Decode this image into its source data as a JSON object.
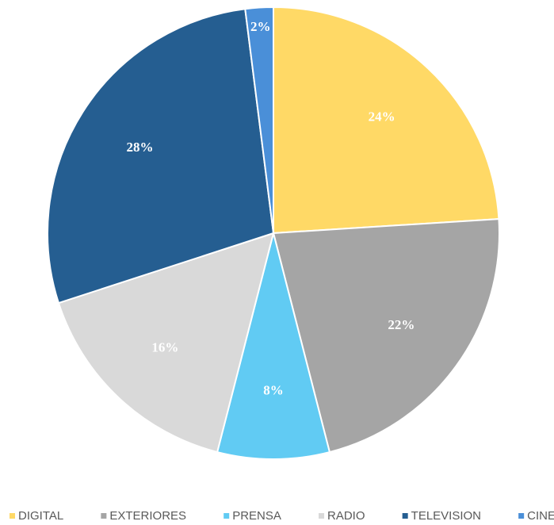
{
  "chart_data": {
    "type": "pie",
    "categories": [
      "DIGITAL",
      "EXTERIORES",
      "PRENSA",
      "RADIO",
      "TELEVISION",
      "CINE"
    ],
    "values": [
      24,
      22,
      8,
      16,
      28,
      2
    ],
    "value_labels": [
      "24%",
      "22%",
      "8%",
      "16%",
      "28%",
      "2%"
    ],
    "colors": [
      "#FFD966",
      "#A5A5A5",
      "#61CBF3",
      "#D9D9D9",
      "#255E91",
      "#4A8FD8"
    ],
    "legend": "bottom"
  }
}
